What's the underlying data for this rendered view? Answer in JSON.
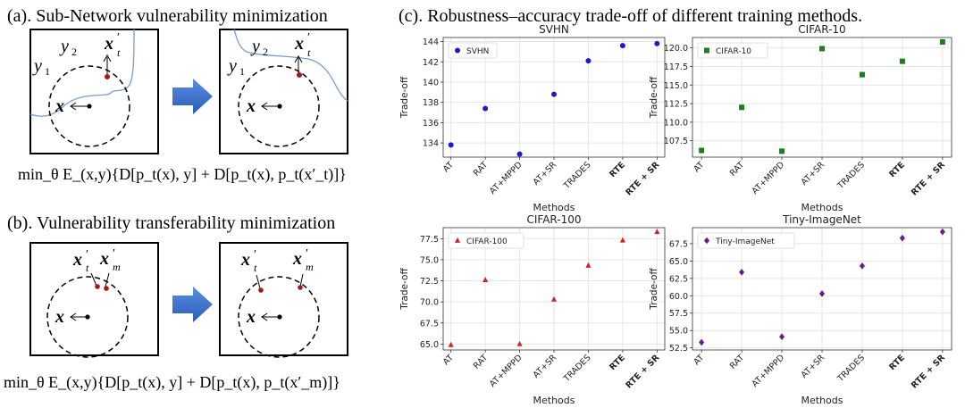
{
  "left_panel": {
    "a_title": "(a). Sub-Network vulnerability minimization",
    "b_title": "(b). Vulnerability transferability  minimization",
    "eq_a": "min_θ E_(x,y){D[p_t(x), y] + D[p_t(x), p_t(x′_t)]}",
    "eq_b": "min_θ E_(x,y){D[p_t(x), y] + D[p_t(x), p_t(x′_m)]}"
  },
  "c_title": "(c). Robustness–accuracy trade-off of different training methods.",
  "chart_data": [
    {
      "type": "scatter",
      "title": "SVHN",
      "xlabel": "Methods",
      "ylabel": "Trade-off",
      "categories": [
        "AT",
        "RAT",
        "AT+MPPD",
        "AT+SR",
        "TRADES",
        "RTE",
        "RTE + SR"
      ],
      "series": [
        {
          "name": "SVHN",
          "color": "#1a1acc",
          "marker": "circle",
          "values": [
            133.8,
            137.4,
            132.9,
            138.8,
            142.1,
            143.6,
            143.8
          ]
        }
      ],
      "ylim": [
        132.6,
        144.4
      ],
      "yticks": [
        134,
        136,
        138,
        140,
        142,
        144
      ],
      "grid": true,
      "legend": "top-left"
    },
    {
      "type": "scatter",
      "title": "CIFAR-10",
      "xlabel": "Methods",
      "ylabel": "Trade-off",
      "categories": [
        "AT",
        "RAT",
        "AT+MPPD",
        "AT+SR",
        "TRADES",
        "RTE",
        "RTE + SR"
      ],
      "series": [
        {
          "name": "CIFAR-10",
          "color": "#1e7d1e",
          "marker": "square",
          "values": [
            106.2,
            112.0,
            106.1,
            119.9,
            116.4,
            118.2,
            120.8
          ]
        }
      ],
      "ylim": [
        105.3,
        121.4
      ],
      "yticks": [
        107.5,
        110.0,
        112.5,
        115.0,
        117.5,
        120.0
      ],
      "grid": true,
      "legend": "top-left"
    },
    {
      "type": "scatter",
      "title": "CIFAR-100",
      "xlabel": "Methods",
      "ylabel": "Trade-off",
      "categories": [
        "AT",
        "RAT",
        "AT+MPPD",
        "AT+SR",
        "TRADES",
        "RTE",
        "RTE + SR"
      ],
      "series": [
        {
          "name": "CIFAR-100",
          "color": "#d62020",
          "marker": "triangle",
          "values": [
            64.9,
            72.6,
            65.0,
            70.3,
            74.3,
            77.3,
            78.3
          ]
        }
      ],
      "ylim": [
        64.3,
        78.8
      ],
      "yticks": [
        65.0,
        67.5,
        70.0,
        72.5,
        75.0,
        77.5
      ],
      "grid": true,
      "legend": "top-left"
    },
    {
      "type": "scatter",
      "title": "Tiny-ImageNet",
      "xlabel": "Methods",
      "ylabel": "Trade-off",
      "categories": [
        "AT",
        "RAT",
        "AT+MPPD",
        "AT+SR",
        "TRADES",
        "RTE",
        "RTE + SR"
      ],
      "series": [
        {
          "name": "Tiny-ImageNet",
          "color": "#6a1a8a",
          "marker": "diamond",
          "values": [
            53.3,
            63.4,
            54.1,
            60.3,
            64.3,
            68.3,
            69.2
          ]
        }
      ],
      "ylim": [
        52.2,
        69.8
      ],
      "yticks": [
        52.5,
        55.0,
        57.5,
        60.0,
        62.5,
        65.0,
        67.5
      ],
      "grid": true,
      "legend": "top-left"
    }
  ]
}
